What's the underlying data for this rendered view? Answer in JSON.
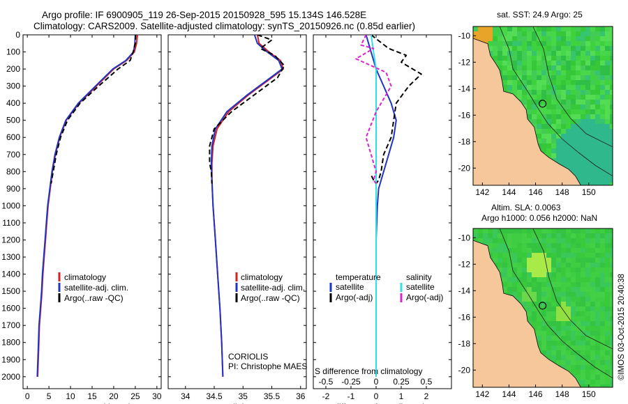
{
  "header": {
    "line1": "Argo profile: IF 6900905_119 26-Sep-2015 20150928_595 15.134S 146.528E",
    "line2": "Climatology: CARS2009. Satellite-adjusted climatology: synTS_20150926.nc (0.85d earlier)"
  },
  "colors": {
    "climatology": "#d62020",
    "satellite": "#1f33c8",
    "argo": "#000000",
    "sal_satellite": "#2ee0e8",
    "sal_argo": "#e020d0",
    "land": "#f6c79a",
    "sea_green": "#30c830"
  },
  "credits": {
    "coriolis": "CORIOLIS",
    "pi": "PI: Christophe MAES",
    "imos": "©IMOS 03-Oct-2015 20:40:38"
  },
  "map_titles": {
    "sst": "sat. SST: 24.9 Argo: 25",
    "sla1": "Altim. SLA: 0.0063",
    "sla2": "Argo h1000: 0.056 h2000: NaN"
  },
  "legends": {
    "profile": [
      "climatology",
      "satellite-adj. clim.",
      "Argo(..raw -QC)"
    ],
    "diff_temp_title": "temperature",
    "diff_sal_title": "salinity",
    "diff_items": [
      "satellite",
      "Argo(-adj)"
    ]
  },
  "chart_data": [
    {
      "type": "line",
      "name": "temperature-profile",
      "xlabel": "temperature (deg C)",
      "xlim": [
        -1,
        31
      ],
      "ylim": [
        0,
        2070
      ],
      "yinvert": true,
      "xticks": [
        0,
        5,
        10,
        15,
        20,
        25,
        30
      ],
      "yticks": [
        0,
        100,
        200,
        300,
        400,
        500,
        600,
        700,
        800,
        900,
        1000,
        1100,
        1200,
        1300,
        1400,
        1500,
        1600,
        1700,
        1800,
        1900,
        2000
      ],
      "series": [
        {
          "name": "climatology",
          "color": "#d62020",
          "dash": "",
          "x": [
            25.5,
            25.3,
            24.8,
            23.0,
            20.0,
            16.0,
            12.0,
            9.0,
            7.5,
            6.5,
            5.8,
            5.3,
            4.8,
            4.5,
            4.2,
            3.9,
            3.6,
            3.4,
            3.1,
            2.8,
            2.6,
            2.4
          ],
          "y": [
            0,
            50,
            100,
            150,
            200,
            300,
            400,
            500,
            600,
            700,
            800,
            900,
            1000,
            1100,
            1200,
            1300,
            1400,
            1500,
            1600,
            1700,
            1850,
            2000
          ]
        },
        {
          "name": "satellite-adj. clim.",
          "color": "#1f33c8",
          "dash": "",
          "x": [
            25.0,
            24.9,
            24.6,
            22.8,
            19.8,
            15.8,
            11.8,
            8.9,
            7.4,
            6.4,
            5.7,
            5.2,
            4.7,
            4.4,
            4.1,
            3.8,
            3.5,
            3.3,
            3.0,
            2.7,
            2.5,
            2.3
          ],
          "y": [
            0,
            50,
            100,
            150,
            200,
            300,
            400,
            500,
            600,
            700,
            800,
            900,
            1000,
            1100,
            1200,
            1300,
            1400,
            1500,
            1600,
            1700,
            1850,
            2000
          ]
        },
        {
          "name": "Argo(..raw -QC)",
          "color": "#000000",
          "dash": "7,4",
          "x": [
            25.1,
            25.0,
            24.5,
            23.8,
            21.0,
            16.5,
            12.2,
            9.3,
            7.7,
            6.7,
            6.0,
            5.5
          ],
          "y": [
            0,
            50,
            100,
            150,
            200,
            300,
            400,
            500,
            600,
            700,
            800,
            870
          ]
        }
      ]
    },
    {
      "type": "line",
      "name": "salinity-profile",
      "xlabel": "salinity",
      "xlim": [
        33.7,
        36.1
      ],
      "ylim": [
        0,
        2070
      ],
      "yinvert": true,
      "xticks": [
        34,
        34.5,
        35,
        35.5,
        36
      ],
      "yticks": [
        0,
        100,
        200,
        300,
        400,
        500,
        600,
        700,
        800,
        900,
        1000,
        1100,
        1200,
        1300,
        1400,
        1500,
        1600,
        1700,
        1800,
        1900,
        2000
      ],
      "series": [
        {
          "name": "climatology",
          "color": "#d62020",
          "dash": "",
          "x": [
            35.25,
            35.28,
            35.45,
            35.65,
            35.7,
            35.5,
            35.1,
            34.75,
            34.55,
            34.48,
            34.46,
            34.46,
            34.48,
            34.52,
            34.56,
            34.6,
            34.63,
            34.65
          ],
          "y": [
            0,
            50,
            100,
            150,
            200,
            250,
            350,
            450,
            550,
            650,
            750,
            850,
            1000,
            1200,
            1400,
            1600,
            1800,
            2000
          ]
        },
        {
          "name": "satellite-adj. clim.",
          "color": "#1f33c8",
          "dash": "",
          "x": [
            35.2,
            35.25,
            35.42,
            35.62,
            35.68,
            35.48,
            35.08,
            34.72,
            34.52,
            34.46,
            34.45,
            34.46,
            34.48,
            34.52,
            34.56,
            34.6,
            34.63,
            34.65
          ],
          "y": [
            0,
            50,
            100,
            150,
            200,
            250,
            350,
            450,
            550,
            650,
            750,
            850,
            1000,
            1200,
            1400,
            1600,
            1800,
            2000
          ]
        },
        {
          "name": "Argo(..raw -QC)",
          "color": "#000000",
          "dash": "7,4",
          "x": [
            35.25,
            35.5,
            35.3,
            35.55,
            35.72,
            35.6,
            35.2,
            34.8,
            34.5,
            34.42,
            34.42,
            34.45,
            34.46
          ],
          "y": [
            0,
            30,
            80,
            120,
            180,
            250,
            350,
            450,
            550,
            650,
            750,
            800,
            870
          ]
        }
      ]
    },
    {
      "type": "line",
      "name": "difference-profile",
      "xlabel": "T difference from climatology",
      "xlabel2": "S difference from climatology",
      "xlim": [
        -2.5,
        3.0
      ],
      "ylim": [
        0,
        2070
      ],
      "yinvert": true,
      "xticks": [
        -2,
        -1,
        0,
        1,
        2
      ],
      "xticks2": [
        {
          "label": "-0.5",
          "x": -2
        },
        {
          "label": "-0.25",
          "x": -1
        },
        {
          "label": "0",
          "x": 0
        },
        {
          "label": "0.25",
          "x": 1
        },
        {
          "label": "0.5",
          "x": 2
        }
      ],
      "yticks": [
        0,
        100,
        200,
        300,
        400,
        500,
        600,
        700,
        800,
        900,
        1000,
        1100,
        1200,
        1300,
        1400,
        1500,
        1600,
        1700,
        1800,
        1900,
        2000
      ],
      "series": [
        {
          "name": "temperature satellite",
          "color": "#1f33c8",
          "dash": "",
          "x": [
            -0.4,
            -0.3,
            -0.2,
            0.0,
            0.3,
            0.6,
            0.8,
            0.7,
            0.5,
            0.3,
            0.1,
            0.05,
            0.0,
            0.0,
            0.0,
            0.0,
            0.0
          ],
          "y": [
            0,
            50,
            100,
            200,
            300,
            400,
            500,
            600,
            700,
            800,
            900,
            1000,
            1200,
            1400,
            1600,
            1800,
            2000
          ]
        },
        {
          "name": "temperature Argo(-adj)",
          "color": "#000000",
          "dash": "7,4",
          "x": [
            -0.2,
            0.5,
            1.2,
            1.0,
            1.8,
            1.3,
            0.8,
            0.7,
            0.6,
            0.3,
            0.2,
            0.1,
            0.0,
            -0.1,
            -0.2
          ],
          "y": [
            0,
            80,
            120,
            160,
            230,
            300,
            400,
            500,
            600,
            700,
            800,
            850,
            870,
            850,
            820
          ]
        },
        {
          "name": "salinity satellite",
          "color": "#2ee0e8",
          "dash": "",
          "x": [
            -0.2,
            -0.1,
            0.0,
            0.0,
            0.0,
            0.0,
            0.0,
            0.0,
            0.0,
            0.0
          ],
          "y": [
            0,
            100,
            200,
            400,
            600,
            800,
            1000,
            1400,
            1800,
            2000
          ]
        },
        {
          "name": "salinity Argo(-adj)",
          "color": "#e020d0",
          "dash": "5,3",
          "x": [
            -0.4,
            -0.6,
            -0.1,
            -0.8,
            0.4,
            0.6,
            0.0,
            -0.4,
            -0.2,
            0.0,
            -0.1,
            0.0
          ],
          "y": [
            0,
            60,
            80,
            140,
            220,
            300,
            450,
            600,
            700,
            800,
            850,
            870
          ]
        }
      ]
    },
    {
      "type": "heatmap",
      "name": "sst-map",
      "title": "sat. SST: 24.9 Argo: 25",
      "xlim": [
        141.3,
        151.8
      ],
      "ylim": [
        -21.3,
        -9.3
      ],
      "xticks": [
        142,
        144,
        146,
        148,
        150
      ],
      "yticks": [
        -10,
        -12,
        -14,
        -16,
        -18,
        -20
      ],
      "marker": {
        "lon": 146.528,
        "lat": -15.134
      }
    },
    {
      "type": "heatmap",
      "name": "sla-map",
      "title": "Altim. SLA: 0.0063",
      "xlim": [
        141.3,
        151.8
      ],
      "ylim": [
        -21.3,
        -9.3
      ],
      "xticks": [
        142,
        144,
        146,
        148,
        150
      ],
      "yticks": [
        -10,
        -12,
        -14,
        -16,
        -18,
        -20
      ],
      "marker": {
        "lon": 146.528,
        "lat": -15.134
      }
    }
  ]
}
